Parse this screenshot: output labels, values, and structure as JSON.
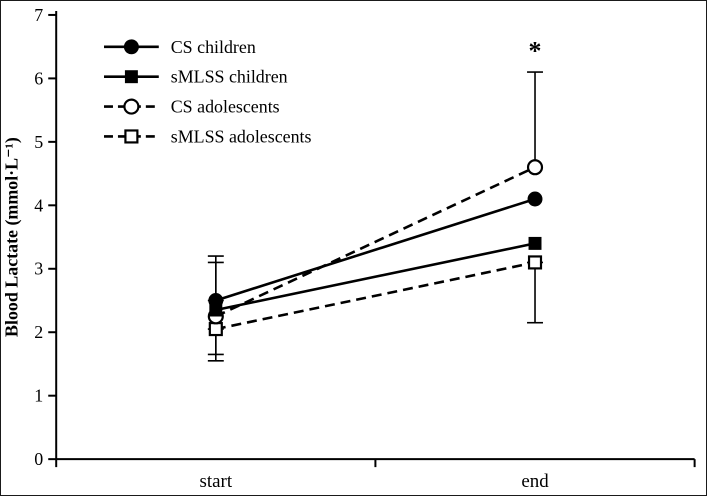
{
  "figure": {
    "background": "#ffffff",
    "ink_color": "#000000"
  },
  "chart_data": {
    "type": "line",
    "title": "",
    "xlabel": "",
    "ylabel": "Blood Lactate (mmol·L⁻¹)",
    "ylim": [
      0,
      7
    ],
    "yticks": [
      0,
      1,
      2,
      3,
      4,
      5,
      6,
      7
    ],
    "categories": [
      "start",
      "end"
    ],
    "grid": false,
    "legend_position": "top-left",
    "color": "#000000",
    "series": [
      {
        "name": "CS children",
        "marker": "circle-filled",
        "line": "solid",
        "values": [
          2.5,
          4.1
        ],
        "errors": [
          [
            2.5,
            3.2
          ],
          null
        ]
      },
      {
        "name": "sMLSS children",
        "marker": "square-filled",
        "line": "solid",
        "values": [
          2.35,
          3.4
        ],
        "errors": [
          null,
          null
        ]
      },
      {
        "name": "CS adolescents",
        "marker": "circle-open",
        "line": "dashed",
        "values": [
          2.25,
          4.6
        ],
        "errors": [
          [
            1.65,
            3.1
          ],
          [
            4.6,
            6.1
          ]
        ]
      },
      {
        "name": "sMLSS adolescents",
        "marker": "square-open",
        "line": "dashed",
        "values": [
          2.05,
          3.1
        ],
        "errors": [
          [
            1.55,
            2.05
          ],
          [
            2.15,
            3.1
          ]
        ]
      }
    ],
    "annotations": [
      {
        "text": "*",
        "category": "end",
        "y": 6.3
      }
    ]
  }
}
